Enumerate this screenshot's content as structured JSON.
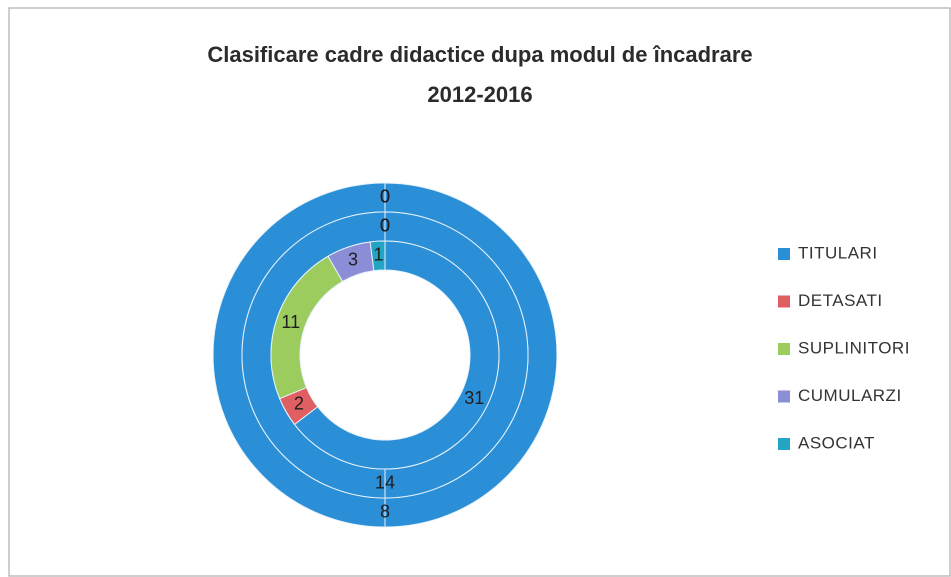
{
  "chart_data": {
    "type": "doughnut",
    "title": [
      "Clasificare cadre didactice dupa modul de încadrare",
      "2012-2016"
    ],
    "categories": [
      "TITULARI",
      "DETASATI",
      "SUPLINITORI",
      "CUMULARZI",
      "ASOCIAT"
    ],
    "colors": [
      "#2b8fd8",
      "#df5f63",
      "#9ccb5e",
      "#8b8dd6",
      "#22a4c2"
    ],
    "series": [
      {
        "values": [
          8,
          0,
          0,
          0,
          0
        ]
      },
      {
        "values": [
          14,
          0,
          0,
          0,
          0
        ]
      },
      {
        "values": [
          31,
          2,
          11,
          3,
          1
        ]
      }
    ],
    "legend": "right"
  }
}
